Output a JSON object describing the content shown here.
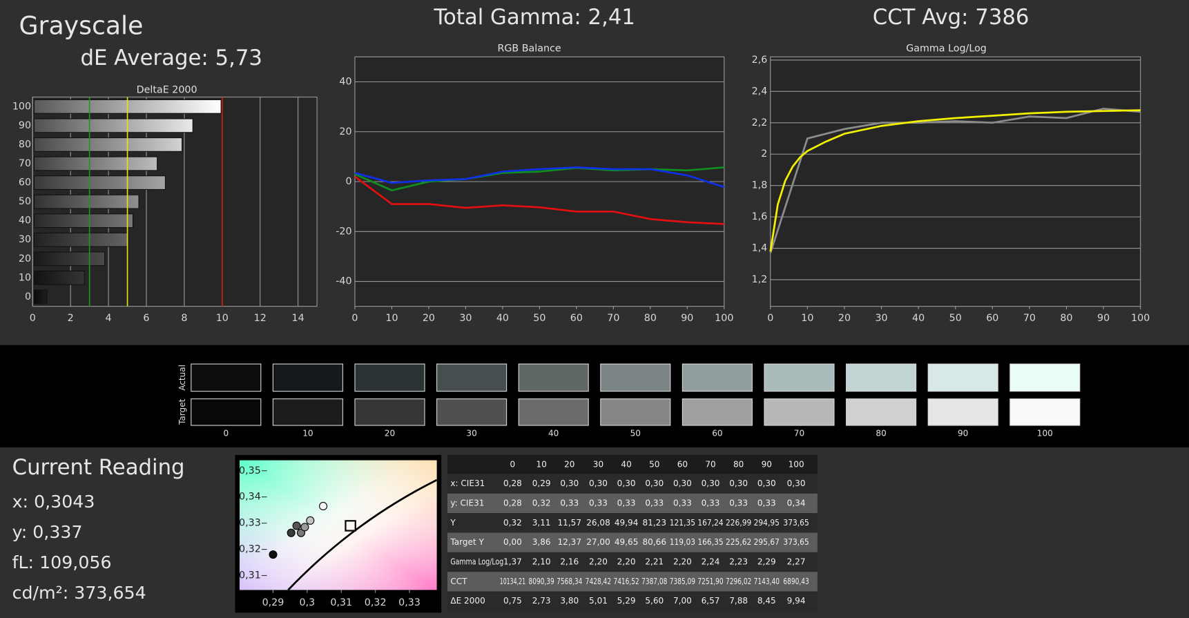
{
  "header": {
    "title": "Grayscale",
    "de_average": "dE Average: 5,73",
    "total_gamma": "Total Gamma: 2,41",
    "cct_avg": "CCT Avg: 7386"
  },
  "chart_data": [
    {
      "type": "bar",
      "orientation": "horizontal",
      "title": "DeltaE 2000",
      "categories": [
        "0",
        "10",
        "20",
        "30",
        "40",
        "50",
        "60",
        "70",
        "80",
        "90",
        "100"
      ],
      "values": [
        0.75,
        2.73,
        3.8,
        5.01,
        5.29,
        5.6,
        7.0,
        6.57,
        7.88,
        8.45,
        9.94
      ],
      "xlim": [
        0,
        15
      ],
      "xticks": [
        0,
        2,
        4,
        6,
        8,
        10,
        12,
        14
      ],
      "grid": true,
      "reference_lines": [
        {
          "value": 3,
          "color": "#1c9a1c"
        },
        {
          "value": 5,
          "color": "#e6e600"
        },
        {
          "value": 10,
          "color": "#d81818"
        }
      ]
    },
    {
      "type": "line",
      "title": "RGB Balance",
      "x": [
        0,
        10,
        20,
        30,
        40,
        50,
        60,
        70,
        80,
        90,
        100
      ],
      "series": [
        {
          "color": "#e01010",
          "values": [
            2,
            -9,
            -9,
            -10.5,
            -9.5,
            -10.3,
            -12,
            -12,
            -15,
            -16.3,
            -17
          ]
        },
        {
          "color": "#0f8f1f",
          "values": [
            3,
            -3.5,
            0,
            1,
            3.5,
            4,
            5.5,
            4.5,
            5,
            4.5,
            5.7
          ]
        },
        {
          "color": "#1030e8",
          "values": [
            3.5,
            -0.5,
            0.5,
            1,
            4,
            5,
            5.7,
            5,
            5,
            2.5,
            -2.2
          ]
        }
      ],
      "xlim": [
        0,
        100
      ],
      "xticks": [
        0,
        10,
        20,
        30,
        40,
        50,
        60,
        70,
        80,
        90,
        100
      ],
      "ylim": [
        -50,
        50
      ],
      "yticks": [
        -40,
        -20,
        0,
        20,
        40
      ],
      "grid": true
    },
    {
      "type": "line",
      "title": "Gamma Log/Log",
      "series": [
        {
          "color": "#8c8c8c",
          "x": [
            0,
            10,
            20,
            30,
            40,
            50,
            60,
            70,
            80,
            90,
            100
          ],
          "values": [
            1.37,
            2.1,
            2.16,
            2.2,
            2.2,
            2.21,
            2.2,
            2.24,
            2.23,
            2.29,
            2.27
          ]
        },
        {
          "color": "#f2f200",
          "x": [
            0,
            2,
            4,
            6,
            8,
            10,
            15,
            20,
            30,
            40,
            50,
            60,
            70,
            80,
            90,
            100
          ],
          "values": [
            1.38,
            1.68,
            1.83,
            1.92,
            1.98,
            2.02,
            2.08,
            2.13,
            2.18,
            2.21,
            2.23,
            2.245,
            2.26,
            2.27,
            2.275,
            2.28
          ]
        }
      ],
      "xlim": [
        0,
        100
      ],
      "xticks": [
        0,
        10,
        20,
        30,
        40,
        50,
        60,
        70,
        80,
        90,
        100
      ],
      "ylim": [
        1.03,
        2.62
      ],
      "yticks": [
        {
          "value": 1.2,
          "label": "1,2"
        },
        {
          "value": 1.4,
          "label": "1,4"
        },
        {
          "value": 1.6,
          "label": "1,6"
        },
        {
          "value": 1.8,
          "label": "1,8"
        },
        2,
        {
          "value": 2.2,
          "label": "2,2"
        },
        {
          "value": 2.4,
          "label": "2,4"
        },
        {
          "value": 2.6,
          "label": "2,6"
        }
      ],
      "grid": true
    },
    {
      "type": "scatter",
      "x": [
        0.29,
        0.2953,
        0.2969,
        0.2982,
        0.2993,
        0.3009,
        0.3047
      ],
      "y": [
        0.318,
        0.3263,
        0.329,
        0.3263,
        0.3285,
        0.331,
        0.3365
      ],
      "colors": [
        "#101010",
        "#3a3a3a",
        "#555555",
        "#7a7a7a",
        "#9a9a9a",
        "#c4c4c4",
        "#f4f4f4"
      ],
      "target": {
        "x": 0.3127,
        "y": 0.329
      },
      "xlim": [
        0.2802,
        0.338
      ],
      "ylim": [
        0.3045,
        0.354
      ],
      "xticks": [
        {
          "value": 0.29,
          "label": "0,29"
        },
        {
          "value": 0.3,
          "label": "0,3"
        },
        {
          "value": 0.31,
          "label": "0,31"
        },
        {
          "value": 0.32,
          "label": "0,32"
        },
        {
          "value": 0.33,
          "label": "0,33"
        }
      ],
      "yticks": [
        {
          "value": 0.31,
          "label": "0,31"
        },
        {
          "value": 0.32,
          "label": "0,32"
        },
        {
          "value": 0.33,
          "label": "0,33"
        },
        {
          "value": 0.34,
          "label": "0,34"
        },
        {
          "value": 0.35,
          "label": "0,35"
        }
      ]
    }
  ],
  "swatches": {
    "actual_label": "Actual",
    "target_label": "Target",
    "labels": [
      "0",
      "10",
      "20",
      "30",
      "40",
      "50",
      "60",
      "70",
      "80",
      "90",
      "100"
    ],
    "actual": [
      "#0b0d0f",
      "#15191b",
      "#2c3335",
      "#464e4f",
      "#5f6767",
      "#7b8585",
      "#909d9c",
      "#aabbbb",
      "#c1d3d2",
      "#d7e8e6",
      "#e9fff6"
    ],
    "target": [
      "#080808",
      "#1c1c1c",
      "#363636",
      "#505050",
      "#6b6b6b",
      "#868686",
      "#a0a0a0",
      "#b8b8b8",
      "#d0d0d0",
      "#e6e6e6",
      "#fafafa"
    ]
  },
  "current_reading": {
    "title": "Current Reading",
    "lines": [
      "x: 0,3043",
      "y: 0,337",
      "fL: 109,056",
      "cd/m²: 373,654"
    ]
  },
  "table": {
    "columns": [
      "0",
      "10",
      "20",
      "30",
      "40",
      "50",
      "60",
      "70",
      "80",
      "90",
      "100"
    ],
    "rows": [
      {
        "label": "x: CIE31",
        "cells": [
          "0,28",
          "0,29",
          "0,30",
          "0,30",
          "0,30",
          "0,30",
          "0,30",
          "0,30",
          "0,30",
          "0,30",
          "0,30"
        ]
      },
      {
        "label": "y: CIE31",
        "cells": [
          "0,28",
          "0,32",
          "0,33",
          "0,33",
          "0,33",
          "0,33",
          "0,33",
          "0,33",
          "0,33",
          "0,33",
          "0,34"
        ]
      },
      {
        "label": "Y",
        "cells": [
          "0,32",
          "3,11",
          "11,57",
          "26,08",
          "49,94",
          "81,23",
          "121,35",
          "167,24",
          "226,99",
          "294,95",
          "373,65"
        ]
      },
      {
        "label": "Target Y",
        "cells": [
          "0,00",
          "3,86",
          "12,37",
          "27,00",
          "49,65",
          "80,66",
          "119,03",
          "166,35",
          "225,62",
          "295,67",
          "373,65"
        ]
      },
      {
        "label": "Gamma Log/Log",
        "cells": [
          "1,37",
          "2,10",
          "2,16",
          "2,20",
          "2,20",
          "2,21",
          "2,20",
          "2,24",
          "2,23",
          "2,29",
          "2,27"
        ]
      },
      {
        "label": "CCT",
        "cells": [
          "10134,21",
          "8090,39",
          "7568,34",
          "7428,42",
          "7416,52",
          "7387,08",
          "7385,09",
          "7251,90",
          "7296,02",
          "7143,40",
          "6890,43"
        ]
      },
      {
        "label": "ΔE 2000",
        "cells": [
          "0,75",
          "2,73",
          "3,80",
          "5,01",
          "5,29",
          "5,60",
          "7,00",
          "6,57",
          "7,88",
          "8,45",
          "9,94"
        ]
      }
    ]
  }
}
